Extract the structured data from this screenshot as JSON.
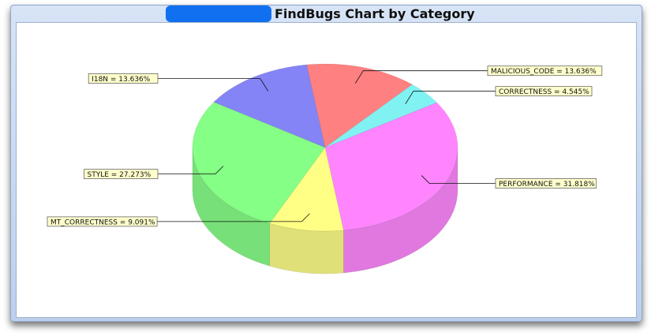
{
  "window": {
    "title": "FindBugs Chart by Category"
  },
  "chart_data": {
    "type": "pie",
    "title": "FindBugs Chart by Category",
    "slices": [
      {
        "name": "MALICIOUS_CODE",
        "value": 13.636,
        "label": "MALICIOUS_CODE = 13.636%",
        "color": "#ff6a6a"
      },
      {
        "name": "CORRECTNESS",
        "value": 4.545,
        "label": "CORRECTNESS = 4.545%",
        "color": "#6bf0f0"
      },
      {
        "name": "PERFORMANCE",
        "value": 31.818,
        "label": "PERFORMANCE = 31.818%",
        "color": "#ff70ff"
      },
      {
        "name": "MT_CORRECTNESS",
        "value": 9.091,
        "label": "MT_CORRECTNESS = 9.091%",
        "color": "#ffff70"
      },
      {
        "name": "STYLE",
        "value": 27.273,
        "label": "STYLE = 27.273%",
        "color": "#70ff70"
      },
      {
        "name": "I18N",
        "value": 13.636,
        "label": "I18N = 13.636%",
        "color": "#6e6ef5"
      }
    ],
    "style": "3d",
    "legend": "none",
    "labels_placement": "outside-with-leader-lines"
  }
}
